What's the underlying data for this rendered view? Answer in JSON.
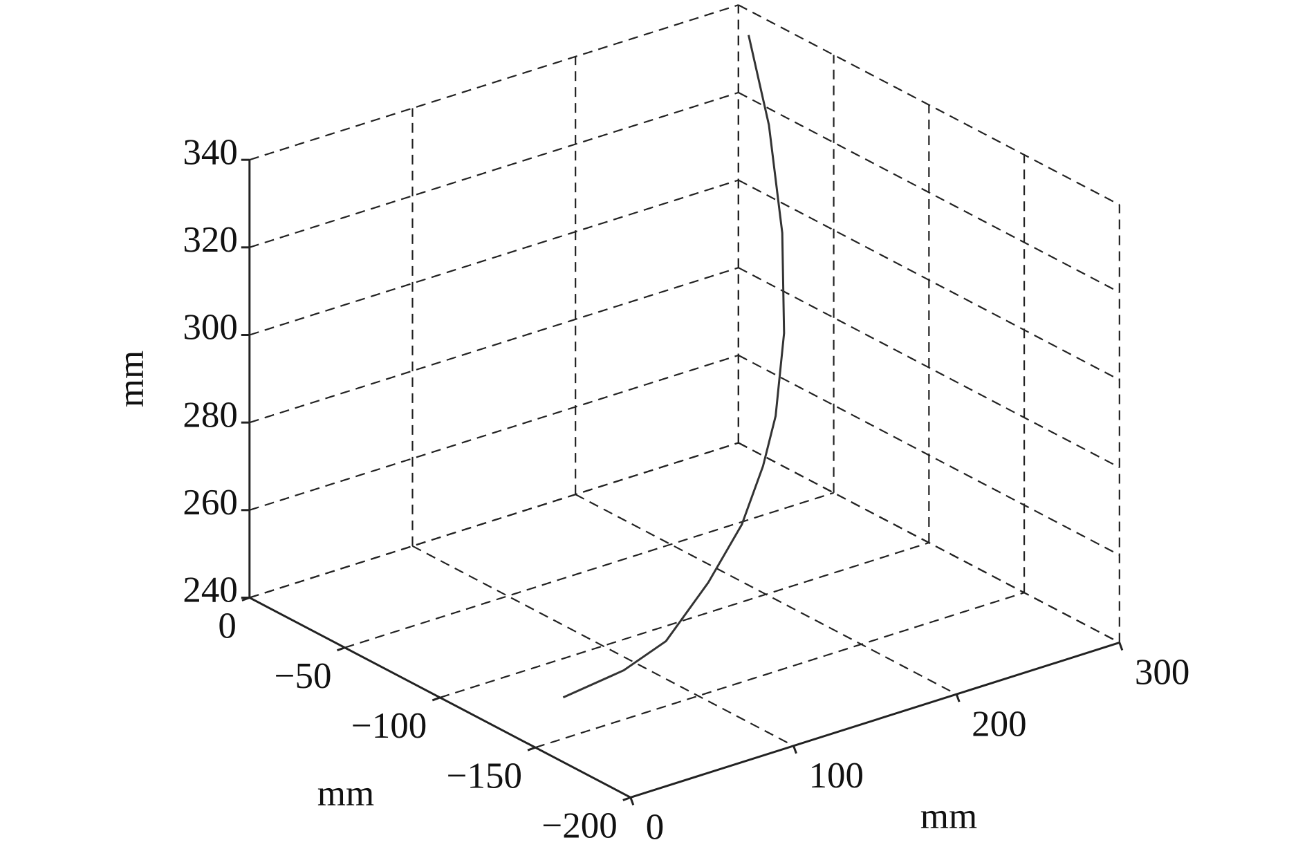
{
  "chart_data": {
    "type": "line3d",
    "x": [
      299.2,
      297.9,
      292.3,
      279.6,
      260.6,
      239.1,
      212.3,
      177.9,
      138.2,
      98.5,
      47.5
    ],
    "y": [
      -6,
      -17.8,
      -29.6,
      -41.4,
      -53.2,
      -65,
      -76.8,
      -88.6,
      -100.4,
      -112.2,
      -124
    ],
    "z": [
      334.6,
      316.9,
      295.6,
      276.9,
      262.9,
      256.7,
      249.2,
      242.7,
      236.7,
      237.4,
      239.9
    ],
    "color": "#333333",
    "xlim": [
      0,
      300
    ],
    "ylim": [
      -200,
      0
    ],
    "zlim": [
      240,
      340
    ],
    "xticks": [
      0,
      100,
      200,
      300
    ],
    "yticks": [
      {
        "value": -200,
        "label": "−200"
      },
      {
        "value": -150,
        "label": "−150"
      },
      {
        "value": -100,
        "label": "−100"
      },
      {
        "value": -50,
        "label": "−50"
      },
      0
    ],
    "zticks": [
      240,
      260,
      280,
      300,
      320,
      340
    ],
    "xlabel": "mm",
    "ylabel": "mm",
    "zlabel": "mm",
    "grid": true
  }
}
